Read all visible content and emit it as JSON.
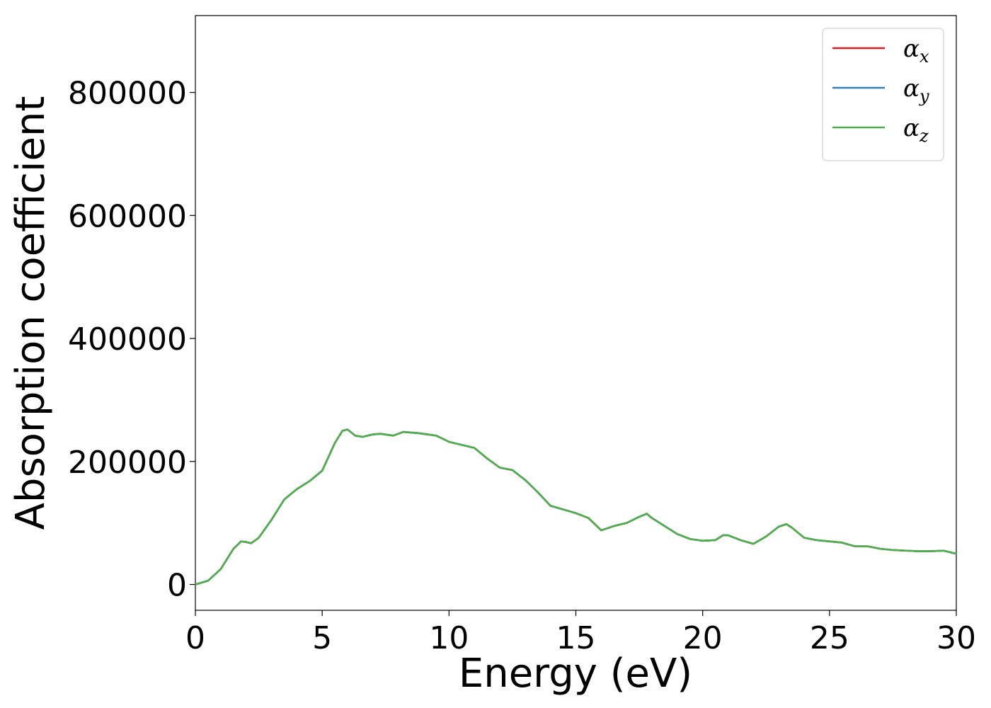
{
  "chart_data": {
    "type": "line",
    "title": "",
    "xlabel": "Energy (eV)",
    "ylabel": "Absorption coefficient",
    "xlim": [
      0,
      30
    ],
    "ylim": [
      -42000,
      925000
    ],
    "xticks": [
      0,
      5,
      10,
      15,
      20,
      25,
      30
    ],
    "yticks": [
      0,
      200000,
      400000,
      600000,
      800000
    ],
    "grid": false,
    "legend_position": "top-right",
    "series": [
      {
        "name": "x",
        "label_main": "α",
        "label_sub": "x",
        "color": "#e41a1c",
        "x": [
          0,
          0.5,
          1,
          1.5,
          1.8,
          2,
          2.2,
          2.5,
          3,
          3.5,
          4,
          4.5,
          5,
          5.5,
          5.8,
          6,
          6.3,
          6.6,
          7,
          7.3,
          7.8,
          8.2,
          8.8,
          9.5,
          10,
          10.5,
          11,
          11.5,
          12,
          12.5,
          13,
          13.5,
          14,
          14.5,
          15,
          15.5,
          16,
          16.5,
          17,
          17.5,
          17.8,
          18,
          18.5,
          19,
          19.5,
          20,
          20.5,
          20.8,
          21,
          21.5,
          22,
          22.5,
          23,
          23.3,
          23.5,
          24,
          24.5,
          25,
          25.5,
          26,
          26.5,
          27,
          27.5,
          28,
          28.5,
          29,
          29.5,
          30
        ],
        "values": [
          0,
          6000,
          25000,
          58000,
          70000,
          69000,
          67000,
          76000,
          105000,
          138000,
          155000,
          168000,
          185000,
          230000,
          250000,
          252000,
          242000,
          240000,
          244000,
          245000,
          242000,
          248000,
          246000,
          242000,
          232000,
          227000,
          222000,
          205000,
          190000,
          186000,
          170000,
          150000,
          128000,
          122000,
          116000,
          108000,
          88000,
          95000,
          100000,
          110000,
          115000,
          108000,
          95000,
          82000,
          74000,
          71000,
          72000,
          80000,
          80000,
          72000,
          66000,
          78000,
          94000,
          98000,
          93000,
          76000,
          72000,
          70000,
          68000,
          62000,
          62000,
          58000,
          56000,
          55000,
          54000,
          54000,
          55000,
          50000
        ]
      },
      {
        "name": "y",
        "label_main": "α",
        "label_sub": "y",
        "color": "#377eb8",
        "x": [
          0,
          0.5,
          1,
          1.5,
          1.8,
          2,
          2.2,
          2.5,
          3,
          3.5,
          4,
          4.5,
          5,
          5.5,
          5.8,
          6,
          6.3,
          6.6,
          7,
          7.3,
          7.8,
          8.2,
          8.8,
          9.5,
          10,
          10.5,
          11,
          11.5,
          12,
          12.5,
          13,
          13.5,
          14,
          14.5,
          15,
          15.5,
          16,
          16.5,
          17,
          17.5,
          17.8,
          18,
          18.5,
          19,
          19.5,
          20,
          20.5,
          20.8,
          21,
          21.5,
          22,
          22.5,
          23,
          23.3,
          23.5,
          24,
          24.5,
          25,
          25.5,
          26,
          26.5,
          27,
          27.5,
          28,
          28.5,
          29,
          29.5,
          30
        ],
        "values": [
          0,
          6000,
          25000,
          58000,
          70000,
          69000,
          67000,
          76000,
          105000,
          138000,
          155000,
          168000,
          185000,
          230000,
          250000,
          252000,
          242000,
          240000,
          244000,
          245000,
          242000,
          248000,
          246000,
          242000,
          232000,
          227000,
          222000,
          205000,
          190000,
          186000,
          170000,
          150000,
          128000,
          122000,
          116000,
          108000,
          88000,
          95000,
          100000,
          110000,
          115000,
          108000,
          95000,
          82000,
          74000,
          71000,
          72000,
          80000,
          80000,
          72000,
          66000,
          78000,
          94000,
          98000,
          93000,
          76000,
          72000,
          70000,
          68000,
          62000,
          62000,
          58000,
          56000,
          55000,
          54000,
          54000,
          55000,
          50000
        ]
      },
      {
        "name": "z",
        "label_main": "α",
        "label_sub": "z",
        "color": "#4daf4a",
        "x": [
          0,
          0.5,
          1,
          1.5,
          1.8,
          2,
          2.2,
          2.5,
          3,
          3.5,
          4,
          4.5,
          5,
          5.5,
          5.8,
          6,
          6.3,
          6.6,
          7,
          7.3,
          7.8,
          8.2,
          8.8,
          9.5,
          10,
          10.5,
          11,
          11.5,
          12,
          12.5,
          13,
          13.5,
          14,
          14.5,
          15,
          15.5,
          16,
          16.5,
          17,
          17.5,
          17.8,
          18,
          18.5,
          19,
          19.5,
          20,
          20.5,
          20.8,
          21,
          21.5,
          22,
          22.5,
          23,
          23.3,
          23.5,
          24,
          24.5,
          25,
          25.5,
          26,
          26.5,
          27,
          27.5,
          28,
          28.5,
          29,
          29.5,
          30
        ],
        "values": [
          0,
          6000,
          25000,
          58000,
          70000,
          69000,
          67000,
          76000,
          105000,
          138000,
          155000,
          168000,
          185000,
          230000,
          250000,
          252000,
          242000,
          240000,
          244000,
          245000,
          242000,
          248000,
          246000,
          242000,
          232000,
          227000,
          222000,
          205000,
          190000,
          186000,
          170000,
          150000,
          128000,
          122000,
          116000,
          108000,
          88000,
          95000,
          100000,
          110000,
          115000,
          108000,
          95000,
          82000,
          74000,
          71000,
          72000,
          80000,
          80000,
          72000,
          66000,
          78000,
          94000,
          98000,
          93000,
          76000,
          72000,
          70000,
          68000,
          62000,
          62000,
          58000,
          56000,
          55000,
          54000,
          54000,
          55000,
          50000
        ]
      }
    ]
  }
}
